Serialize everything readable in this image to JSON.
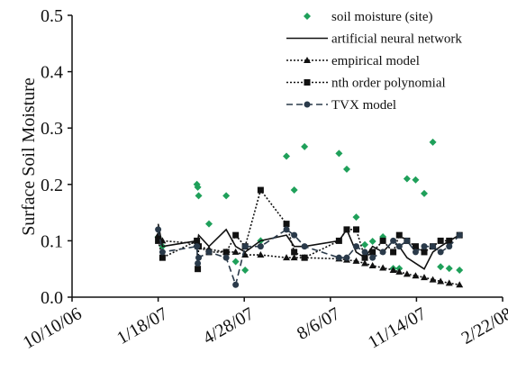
{
  "chart_data": {
    "type": "line",
    "ylabel": "Surface Soil Moisture",
    "xlim": [
      "10/10/06",
      "2/22/08"
    ],
    "xticks": [
      "10/10/06",
      "1/18/07",
      "4/28/07",
      "8/6/07",
      "11/14/07",
      "2/22/08"
    ],
    "ylim": [
      0,
      0.5
    ],
    "yticks": [
      {
        "value": 0,
        "label": "0.0"
      },
      0.1,
      0.2,
      0.3,
      0.4,
      0.5
    ],
    "legend": "top-right",
    "series": [
      {
        "name": "soil moisture (site)",
        "color": "#1fa05a",
        "line": "none",
        "marker": "diamond",
        "x": [
          "1/18/07",
          "1/23/07",
          "3/4/07",
          "3/5/07",
          "3/6/07",
          "3/18/07",
          "4/7/07",
          "4/18/07",
          "4/29/07",
          "5/17/07",
          "6/16/07",
          "6/25/07",
          "7/7/07",
          "8/16/07",
          "8/25/07",
          "9/5/07",
          "9/15/07",
          "9/24/07",
          "10/6/07",
          "10/18/07",
          "10/25/07",
          "11/3/07",
          "11/13/07",
          "11/23/07",
          "12/3/07",
          "12/12/07",
          "12/22/07",
          "1/3/08"
        ],
        "values": [
          0.107,
          0.09,
          0.2,
          0.195,
          0.18,
          0.13,
          0.18,
          0.063,
          0.048,
          0.1,
          0.25,
          0.19,
          0.267,
          0.255,
          0.227,
          0.142,
          0.093,
          0.099,
          0.107,
          0.051,
          0.051,
          0.21,
          0.208,
          0.184,
          0.275,
          0.054,
          0.051,
          0.048
        ]
      },
      {
        "name": "artificial neural network",
        "color": "#111111",
        "line": "solid",
        "marker": "none",
        "x": [
          "1/18/07",
          "1/23/07",
          "3/4/07",
          "3/5/07",
          "3/6/07",
          "3/18/07",
          "4/7/07",
          "4/18/07",
          "4/29/07",
          "5/17/07",
          "6/16/07",
          "6/25/07",
          "7/7/07",
          "8/16/07",
          "8/25/07",
          "9/5/07",
          "9/15/07",
          "9/24/07",
          "10/6/07",
          "10/18/07",
          "10/25/07",
          "11/3/07",
          "11/13/07",
          "11/23/07",
          "12/3/07",
          "12/12/07",
          "12/22/07",
          "1/3/08"
        ],
        "values": [
          0.13,
          0.09,
          0.1,
          0.1,
          0.11,
          0.09,
          0.12,
          0.09,
          0.08,
          0.1,
          0.11,
          0.09,
          0.09,
          0.1,
          0.12,
          0.08,
          0.07,
          0.09,
          0.08,
          0.1,
          0.09,
          0.07,
          0.06,
          0.05,
          0.08,
          0.09,
          0.1,
          0.11
        ]
      },
      {
        "name": "empirical model",
        "color": "#111111",
        "line": "dotted",
        "marker": "triangle",
        "x": [
          "1/18/07",
          "1/23/07",
          "3/4/07",
          "3/5/07",
          "3/6/07",
          "3/18/07",
          "4/7/07",
          "4/18/07",
          "4/29/07",
          "5/17/07",
          "6/16/07",
          "6/25/07",
          "7/7/07",
          "8/16/07",
          "8/25/07",
          "9/5/07",
          "9/15/07",
          "9/24/07",
          "10/6/07",
          "10/18/07",
          "10/25/07",
          "11/3/07",
          "11/13/07",
          "11/23/07",
          "12/3/07",
          "12/12/07",
          "12/22/07",
          "1/3/08"
        ],
        "values": [
          0.11,
          0.1,
          0.095,
          0.09,
          0.09,
          0.085,
          0.08,
          0.08,
          0.075,
          0.075,
          0.07,
          0.07,
          0.07,
          0.068,
          0.066,
          0.064,
          0.06,
          0.056,
          0.052,
          0.048,
          0.045,
          0.041,
          0.038,
          0.035,
          0.031,
          0.028,
          0.025,
          0.022
        ]
      },
      {
        "name": "nth order polynomial",
        "color": "#111111",
        "line": "dotted",
        "marker": "square",
        "x": [
          "1/18/07",
          "1/23/07",
          "3/4/07",
          "3/5/07",
          "3/6/07",
          "3/18/07",
          "4/7/07",
          "4/18/07",
          "4/29/07",
          "5/17/07",
          "6/16/07",
          "6/25/07",
          "7/7/07",
          "8/16/07",
          "8/25/07",
          "9/5/07",
          "9/15/07",
          "9/24/07",
          "10/6/07",
          "10/18/07",
          "10/25/07",
          "11/3/07",
          "11/13/07",
          "11/23/07",
          "12/3/07",
          "12/12/07",
          "12/22/07",
          "1/3/08"
        ],
        "values": [
          0.1,
          0.07,
          0.1,
          0.05,
          0.09,
          0.08,
          0.08,
          0.11,
          0.09,
          0.19,
          0.13,
          0.08,
          0.07,
          0.1,
          0.12,
          0.12,
          0.07,
          0.08,
          0.1,
          0.08,
          0.11,
          0.1,
          0.09,
          0.08,
          0.09,
          0.1,
          0.1,
          0.11
        ]
      },
      {
        "name": "TVX model",
        "color": "#2a3a4a",
        "line": "dashed",
        "marker": "circle",
        "x": [
          "1/18/07",
          "1/23/07",
          "3/4/07",
          "3/5/07",
          "3/6/07",
          "3/18/07",
          "4/7/07",
          "4/18/07",
          "4/29/07",
          "5/17/07",
          "6/16/07",
          "6/25/07",
          "7/7/07",
          "8/16/07",
          "8/25/07",
          "9/5/07",
          "9/15/07",
          "9/24/07",
          "10/6/07",
          "10/18/07",
          "10/25/07",
          "11/3/07",
          "11/13/07",
          "11/23/07",
          "12/3/07",
          "12/12/07",
          "12/22/07",
          "1/3/08"
        ],
        "values": [
          0.12,
          0.08,
          0.09,
          0.06,
          0.07,
          0.08,
          0.07,
          0.022,
          0.09,
          0.09,
          0.12,
          0.11,
          0.09,
          0.07,
          0.07,
          0.09,
          0.08,
          0.07,
          0.08,
          0.1,
          0.09,
          0.1,
          0.08,
          0.09,
          0.09,
          0.08,
          0.09,
          0.11
        ]
      }
    ]
  }
}
